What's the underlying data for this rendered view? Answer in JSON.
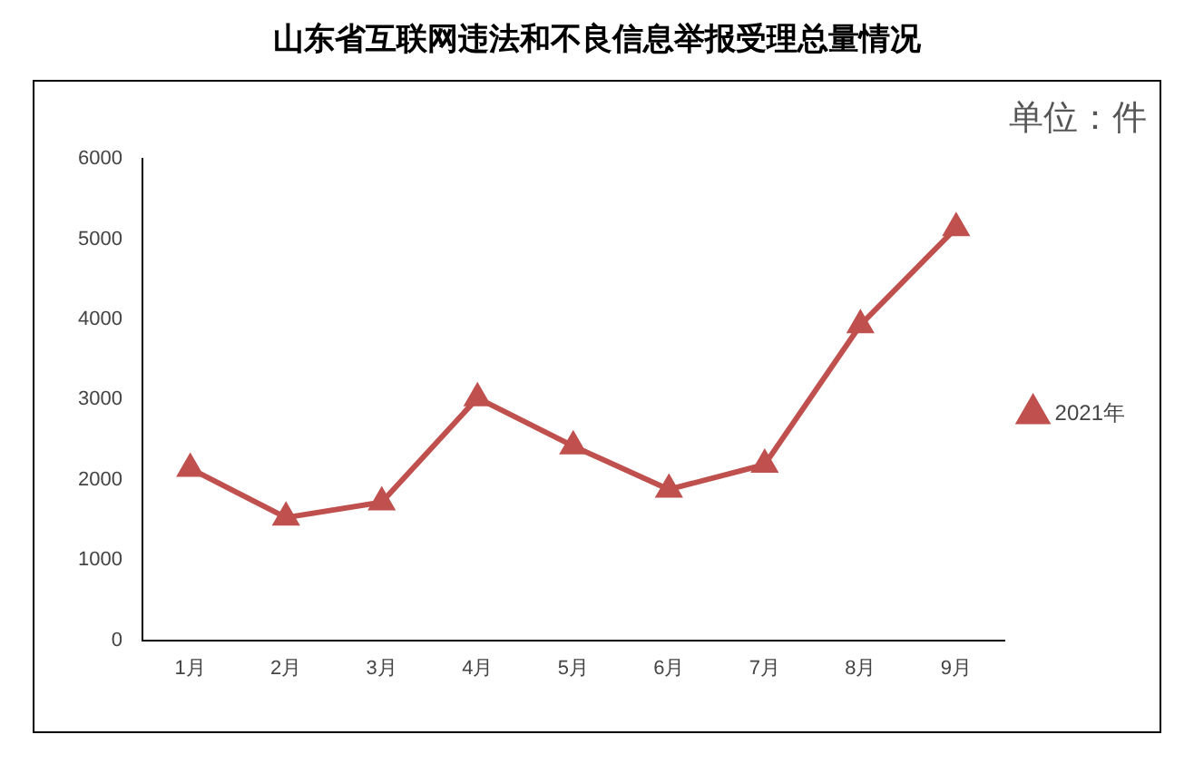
{
  "chart_data": {
    "type": "line",
    "title": "山东省互联网违法和不良信息举报受理总量情况",
    "annotations": [
      "单位：件"
    ],
    "categories": [
      "1月",
      "2月",
      "3月",
      "4月",
      "5月",
      "6月",
      "7月",
      "8月",
      "9月"
    ],
    "series": [
      {
        "name": "2021年",
        "color": "#c0504d",
        "values": [
          2140,
          1530,
          1720,
          3020,
          2420,
          1880,
          2190,
          3930,
          5140
        ]
      }
    ],
    "ylim": [
      0,
      6000
    ],
    "yticks": [
      0,
      1000,
      2000,
      3000,
      4000,
      5000,
      6000
    ],
    "grid": false,
    "legend": "right",
    "marker": "triangle",
    "line_style": "solid"
  }
}
